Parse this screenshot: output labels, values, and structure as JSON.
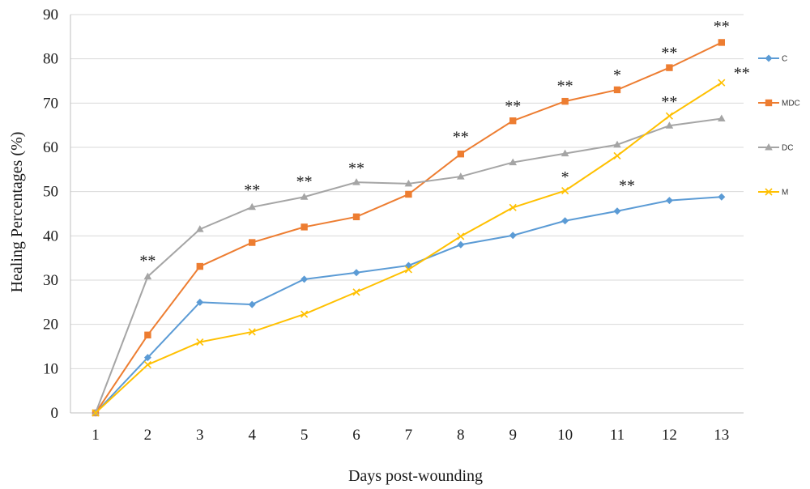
{
  "chart_data": {
    "type": "line",
    "xlabel": "Days post-wounding",
    "ylabel": "Healing Percentages (%)",
    "categories": [
      "1",
      "2",
      "3",
      "4",
      "5",
      "6",
      "7",
      "8",
      "9",
      "10",
      "11",
      "12",
      "13"
    ],
    "ylim": [
      0,
      90
    ],
    "yticks": [
      "0",
      "10",
      "20",
      "30",
      "40",
      "50",
      "60",
      "70",
      "80",
      "90"
    ],
    "grid": "horizontal",
    "legend_position": "right",
    "series": [
      {
        "name": "C",
        "color": "#5B9BD5",
        "marker": "diamond",
        "values": [
          0,
          12.5,
          25,
          24.5,
          30.2,
          31.7,
          33.3,
          38,
          40.1,
          43.4,
          45.6,
          48,
          48.8
        ]
      },
      {
        "name": "MDC",
        "color": "#ED7D31",
        "marker": "square",
        "values": [
          0,
          17.6,
          33.1,
          38.5,
          42,
          44.3,
          49.4,
          58.5,
          66,
          70.4,
          73,
          78,
          83.7
        ]
      },
      {
        "name": "DC",
        "color": "#A5A5A5",
        "marker": "triangle",
        "values": [
          0,
          30.8,
          41.5,
          46.5,
          48.8,
          52.1,
          51.8,
          53.4,
          56.6,
          58.6,
          60.6,
          64.9,
          66.5
        ]
      },
      {
        "name": "M",
        "color": "#FFC000",
        "marker": "x",
        "values": [
          0,
          10.9,
          16,
          18.3,
          22.3,
          27.3,
          32.4,
          39.9,
          46.4,
          50.2,
          58.1,
          67.1,
          74.6
        ]
      }
    ],
    "annotations": [
      {
        "text": "**",
        "x": "2",
        "y": 35
      },
      {
        "text": "**",
        "x": "4",
        "y": 51
      },
      {
        "text": "**",
        "x": "5",
        "y": 53
      },
      {
        "text": "**",
        "x": "6",
        "y": 56
      },
      {
        "text": "**",
        "x": "8",
        "y": 63
      },
      {
        "text": "**",
        "x": "9",
        "y": 70
      },
      {
        "text": "**",
        "x": "10",
        "y": 74.5
      },
      {
        "text": "*",
        "x": "10",
        "y": 54
      },
      {
        "text": "*",
        "x": "11",
        "y": 77
      },
      {
        "text": "**",
        "x": "11",
        "y": 52
      },
      {
        "text": "**",
        "x": "12",
        "y": 82
      },
      {
        "text": "**",
        "x": "12",
        "y": 71
      },
      {
        "text": "**",
        "x": "13",
        "y": 88
      },
      {
        "text": "**",
        "x": "13",
        "y": 77.5
      }
    ]
  }
}
